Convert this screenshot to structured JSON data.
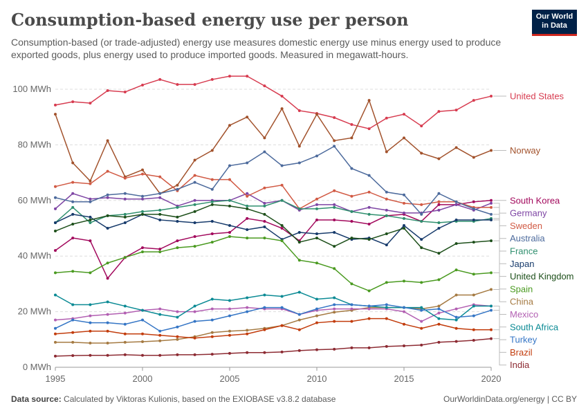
{
  "header": {
    "title": "Consumption-based energy use per person",
    "subtitle": "Consumption-based (or trade-adjusted) energy use measures domestic energy use minus energy used to produce exported goods, plus energy used to produce imported goods. Measured in megawatt-hours.",
    "logo": "Our World in Data"
  },
  "footer": {
    "source_label": "Data source:",
    "source": "Calculated by Viktoras Kulionis, based on the EXIOBASE v3.8.2 database",
    "credit": "OurWorldinData.org/energy | CC BY"
  },
  "chart_data": {
    "type": "line",
    "title": "Consumption-based energy use per person",
    "ylim": [
      0,
      100
    ],
    "xlim": [
      1995,
      2020
    ],
    "y_ticks": [
      "0 MWh",
      "20 MWh",
      "40 MWh",
      "60 MWh",
      "80 MWh",
      "100 MWh"
    ],
    "x_ticks": [
      "1995",
      "2000",
      "2005",
      "2010",
      "2015",
      "2020"
    ],
    "grid": "horizontal dashed",
    "legend": "right (line-end labels)",
    "x": [
      1995,
      1996,
      1997,
      1998,
      1999,
      2000,
      2001,
      2002,
      2003,
      2004,
      2005,
      2006,
      2007,
      2008,
      2009,
      2010,
      2011,
      2012,
      2013,
      2014,
      2015,
      2016,
      2017,
      2018,
      2019,
      2020
    ],
    "series": [
      {
        "name": "United States",
        "color": "#d73c50",
        "values": [
          94.3,
          95.5,
          95,
          99.5,
          99,
          101.5,
          103.5,
          101.7,
          101.7,
          103.5,
          104.7,
          104.7,
          101.2,
          97.5,
          92.3,
          91.3,
          89.8,
          87.3,
          85.8,
          89.6,
          91,
          86.8,
          92,
          92.5,
          96,
          97.5
        ]
      },
      {
        "name": "Norway",
        "color": "#a2522c",
        "values": [
          91,
          73.5,
          67,
          81.5,
          68.5,
          71,
          62.5,
          65.5,
          74.5,
          78,
          87,
          90,
          82.5,
          93,
          79.5,
          91,
          81.5,
          82.5,
          96,
          77.5,
          82.5,
          77,
          75,
          79,
          75.5,
          78
        ]
      },
      {
        "name": "South Korea",
        "color": "#a2085c",
        "values": [
          42,
          46.5,
          45.5,
          32,
          39.5,
          43,
          42.5,
          45.5,
          47,
          48,
          48.5,
          53.5,
          52.5,
          50,
          45.5,
          53,
          53,
          52.5,
          51.5,
          54.5,
          55,
          52.5,
          58.5,
          58.5,
          59.5,
          60
        ]
      },
      {
        "name": "Germany",
        "color": "#7e45a4",
        "values": [
          57,
          62.5,
          60.5,
          61,
          60.5,
          60.5,
          61,
          58,
          60,
          60,
          60,
          62.5,
          59,
          60,
          56.5,
          58.5,
          58.5,
          56,
          57.5,
          56.5,
          55.5,
          55.5,
          56.5,
          58.5,
          56.5,
          59
        ]
      },
      {
        "name": "Sweden",
        "color": "#d15a44",
        "values": [
          65,
          66.5,
          66,
          70.5,
          68,
          69.5,
          68.5,
          63.5,
          69,
          67.5,
          67.5,
          61.5,
          64.5,
          65.5,
          57,
          60.5,
          63.5,
          61.5,
          63,
          60.5,
          59,
          58.5,
          59.5,
          59.5,
          57.5,
          57.5
        ]
      },
      {
        "name": "Australia",
        "color": "#4c6a9c",
        "values": [
          61,
          59.5,
          59.5,
          62,
          62.5,
          61.5,
          62.5,
          64,
          66.5,
          64,
          72.5,
          73.5,
          77.5,
          72.5,
          73.5,
          76,
          79.5,
          71.5,
          69,
          63,
          62,
          55,
          62.5,
          59.5,
          57,
          55
        ]
      },
      {
        "name": "France",
        "color": "#2f8f6e",
        "values": [
          52,
          57.5,
          52,
          54.5,
          55,
          56,
          56.5,
          57.5,
          58.5,
          59.5,
          60,
          58,
          58,
          60,
          57,
          57,
          57.5,
          56,
          55,
          54.5,
          53.5,
          52.5,
          52,
          52.5,
          52.5,
          53.5
        ]
      },
      {
        "name": "Japan",
        "color": "#163a6b",
        "values": [
          52,
          55,
          54,
          50,
          52,
          55,
          53,
          52.5,
          52,
          52.5,
          51,
          49.5,
          50.5,
          46,
          48.5,
          48,
          48.5,
          46,
          46.5,
          44,
          51,
          46,
          50,
          53,
          53,
          53
        ]
      },
      {
        "name": "United Kingdom",
        "color": "#1d4f1a",
        "values": [
          49,
          51.5,
          53,
          54.5,
          54,
          55,
          55,
          54,
          56,
          58.5,
          58,
          57,
          55,
          51,
          45,
          46.5,
          43.5,
          46.5,
          46,
          48,
          50,
          43,
          41,
          44.5,
          45,
          45.5
        ]
      },
      {
        "name": "Spain",
        "color": "#4a9a20",
        "values": [
          34,
          34.5,
          34,
          37.5,
          39.5,
          41.5,
          41.5,
          43,
          43.5,
          45,
          47,
          46.5,
          46.5,
          45.5,
          38.5,
          37.5,
          35.5,
          30,
          27.5,
          30.5,
          31,
          30.5,
          31.5,
          35,
          33.5,
          34
        ]
      },
      {
        "name": "China",
        "color": "#a57a42",
        "values": [
          9,
          9,
          8.7,
          8.7,
          9,
          9.2,
          9.5,
          10,
          11,
          12.5,
          13,
          13.3,
          14,
          15,
          17,
          18.5,
          19.8,
          20.5,
          21.5,
          21.5,
          21.5,
          21,
          22,
          26,
          26,
          28
        ]
      },
      {
        "name": "Mexico",
        "color": "#b25fb2",
        "values": [
          17,
          17.5,
          18.5,
          19,
          19.5,
          20.5,
          21,
          20,
          20,
          21,
          21,
          21.5,
          21,
          21,
          19,
          20.5,
          21,
          21,
          21,
          21,
          20,
          16.5,
          19.5,
          21,
          22.5,
          22
        ]
      },
      {
        "name": "South Africa",
        "color": "#0a8a94",
        "values": [
          26,
          22.5,
          22.5,
          23.5,
          22,
          20.5,
          19,
          18,
          22,
          24.5,
          24,
          25,
          26,
          25.5,
          27,
          24.5,
          25,
          22.5,
          22,
          21.5,
          21.5,
          21.5,
          17.5,
          17,
          22,
          22
        ]
      },
      {
        "name": "Turkey",
        "color": "#3475c5",
        "values": [
          14,
          17,
          16,
          16,
          15.5,
          17,
          13,
          14.5,
          16.5,
          17,
          18.5,
          20,
          21.5,
          21.5,
          19,
          21,
          22.5,
          22.5,
          22,
          22.5,
          21.5,
          20.5,
          21,
          18,
          18.5,
          20.5
        ]
      },
      {
        "name": "Brazil",
        "color": "#c23c0c",
        "values": [
          12,
          12.5,
          13,
          13,
          12,
          12,
          11.5,
          11,
          10.5,
          11,
          11.5,
          12,
          13.5,
          15,
          13.5,
          16,
          16.5,
          16.5,
          17.5,
          17.5,
          15.5,
          14,
          15.5,
          14,
          13.5,
          13.5
        ]
      },
      {
        "name": "India",
        "color": "#8c2a32",
        "values": [
          4,
          4.2,
          4.3,
          4.3,
          4.5,
          4.3,
          4.3,
          4.5,
          4.5,
          4.7,
          5,
          5.3,
          5.3,
          5.5,
          6,
          6.3,
          6.5,
          7,
          7,
          7.5,
          7.7,
          8,
          9,
          9.3,
          9.7,
          10.3
        ]
      }
    ]
  }
}
